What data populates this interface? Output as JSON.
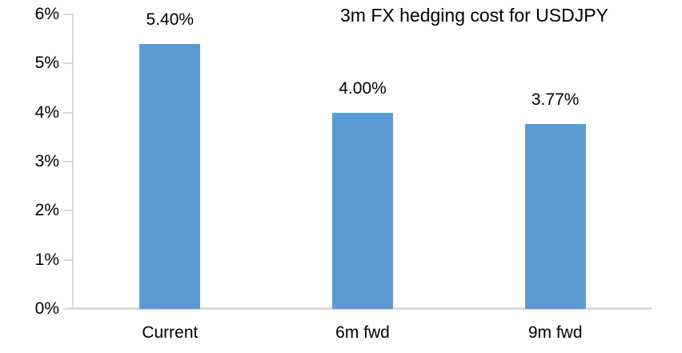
{
  "chart_data": {
    "type": "bar",
    "title": "3m FX hedging cost for USDJPY",
    "categories": [
      "Current",
      "6m fwd",
      "9m fwd"
    ],
    "values": [
      5.4,
      4.0,
      3.77
    ],
    "value_labels": [
      "5.40%",
      "4.00%",
      "3.77%"
    ],
    "xlabel": "",
    "ylabel": "",
    "ylim": [
      0,
      6
    ],
    "ytick_step": 1,
    "ytick_labels": [
      "0%",
      "1%",
      "2%",
      "3%",
      "4%",
      "5%",
      "6%"
    ],
    "grid": false,
    "legend": "none",
    "bar_color": "#5B9BD5",
    "axis_color": "#D9D9D9",
    "text_color": "#000000"
  }
}
